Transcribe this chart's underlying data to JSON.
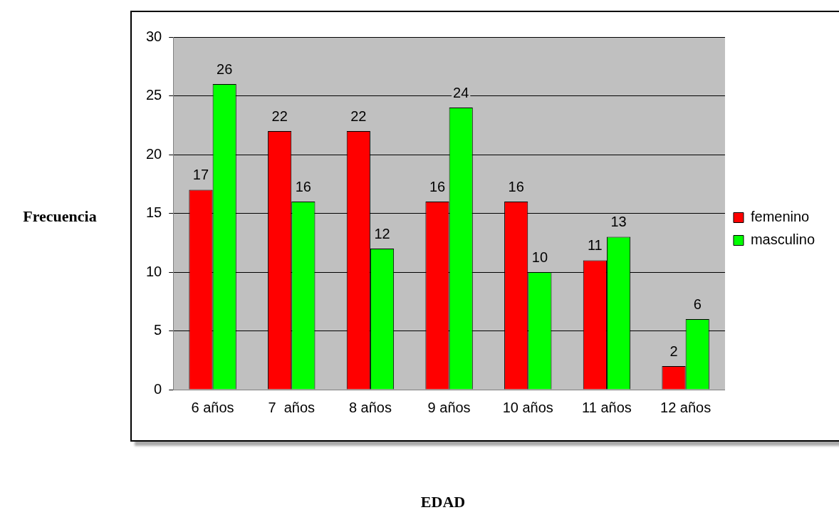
{
  "chart_data": {
    "type": "bar",
    "xlabel": "EDAD",
    "ylabel": "Frecuencia",
    "categories": [
      "6 años",
      "7  años",
      "8 años",
      "9 años",
      "10 años",
      "11 años",
      "12 años"
    ],
    "series": [
      {
        "name": "femenino",
        "color": "#ff0000",
        "values": [
          17,
          22,
          22,
          16,
          16,
          11,
          2
        ]
      },
      {
        "name": "masculino",
        "color": "#00ff00",
        "values": [
          26,
          16,
          12,
          24,
          10,
          13,
          6
        ]
      }
    ],
    "ylim": [
      0,
      30
    ],
    "yticks": [
      0,
      5,
      10,
      15,
      20,
      25,
      30
    ],
    "grid": "y",
    "legend": "right",
    "data_labels": true
  }
}
